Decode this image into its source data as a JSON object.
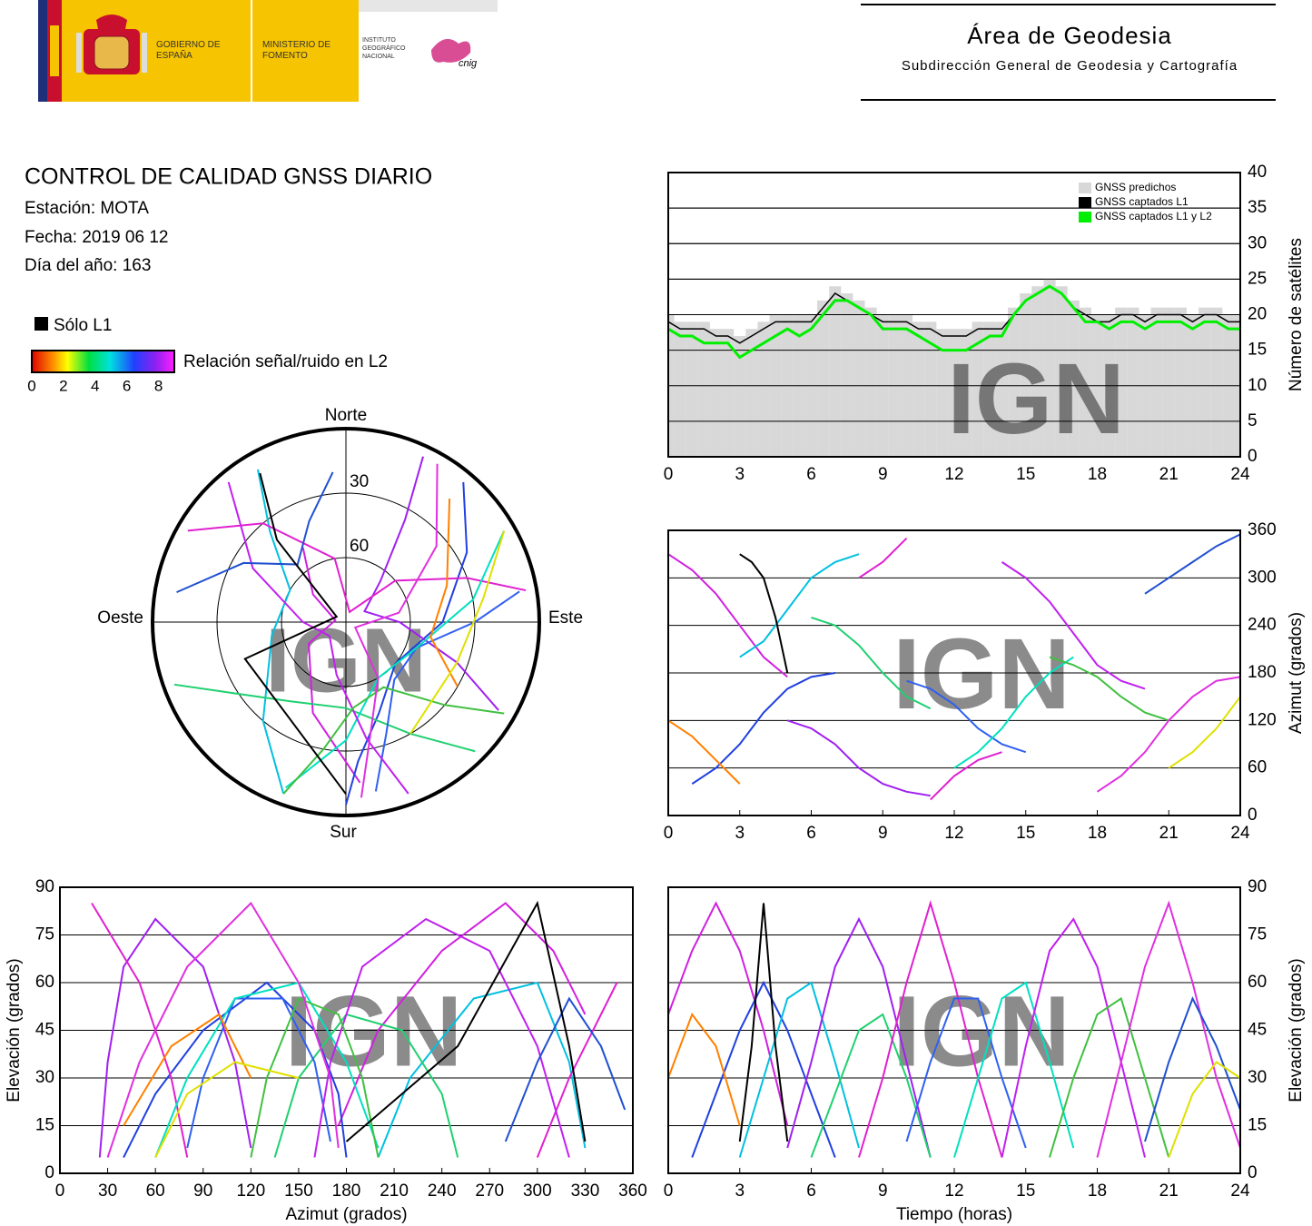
{
  "header": {
    "logo_gov": "GOBIERNO DE ESPAÑA",
    "logo_ministry": "MINISTERIO DE FOMENTO",
    "logo_ign": "INSTITUTO GEOGRÁFICO NACIONAL",
    "logo_cnig": "cnig",
    "title": "Área de Geodesia",
    "subtitle": "Subdirección General de Geodesia y Cartografía"
  },
  "report": {
    "title": "CONTROL DE CALIDAD GNSS DIARIO",
    "station": "Estación: MOTA",
    "date": "Fecha: 2019 06 12",
    "day_of_year": "Día del año: 163",
    "legend_l1": "Sólo L1",
    "colorbar_label": "Relación señal/ruido en L2",
    "colorbar_range": [
      0,
      9
    ],
    "colorbar_ticks": [
      0,
      2,
      4,
      6,
      8
    ]
  },
  "watermark": "IGN",
  "tracks": [
    {
      "color": "#d020e0",
      "x": [
        0,
        1,
        2,
        3,
        4,
        5
      ],
      "azimuth": [
        330,
        310,
        280,
        240,
        200,
        175
      ],
      "elevation": [
        50,
        70,
        85,
        70,
        45,
        15
      ]
    },
    {
      "color": "#2040e0",
      "x": [
        1,
        2,
        3,
        4,
        5,
        6,
        7
      ],
      "azimuth": [
        40,
        60,
        90,
        130,
        160,
        175,
        180
      ],
      "elevation": [
        5,
        25,
        45,
        60,
        45,
        25,
        5
      ]
    },
    {
      "color": "#00c0e0",
      "x": [
        3,
        4,
        5,
        6,
        7,
        8
      ],
      "azimuth": [
        200,
        220,
        260,
        300,
        320,
        330
      ],
      "elevation": [
        5,
        30,
        55,
        60,
        35,
        8
      ]
    },
    {
      "color": "#a020f0",
      "x": [
        5,
        6,
        7,
        8,
        9,
        10,
        11
      ],
      "azimuth": [
        120,
        110,
        90,
        60,
        40,
        30,
        25
      ],
      "elevation": [
        8,
        35,
        65,
        80,
        65,
        35,
        5
      ]
    },
    {
      "color": "#20d070",
      "x": [
        6,
        7,
        8,
        9,
        10,
        11
      ],
      "azimuth": [
        250,
        240,
        215,
        180,
        150,
        135
      ],
      "elevation": [
        5,
        25,
        45,
        50,
        30,
        5
      ]
    },
    {
      "color": "#e020d0",
      "x": [
        8,
        9,
        10,
        11,
        12,
        13,
        14
      ],
      "azimuth": [
        300,
        320,
        350,
        20,
        50,
        70,
        80
      ],
      "elevation": [
        5,
        30,
        60,
        85,
        60,
        30,
        5
      ]
    },
    {
      "color": "#3060f0",
      "x": [
        10,
        11,
        12,
        13,
        14,
        15
      ],
      "azimuth": [
        170,
        160,
        140,
        110,
        90,
        80
      ],
      "elevation": [
        10,
        35,
        55,
        55,
        30,
        8
      ]
    },
    {
      "color": "#00e0c0",
      "x": [
        12,
        13,
        14,
        15,
        16,
        17
      ],
      "azimuth": [
        60,
        80,
        110,
        150,
        180,
        200
      ],
      "elevation": [
        5,
        30,
        55,
        60,
        35,
        8
      ]
    },
    {
      "color": "#c020f0",
      "x": [
        14,
        15,
        16,
        17,
        18,
        19,
        20
      ],
      "azimuth": [
        320,
        300,
        270,
        230,
        190,
        170,
        160
      ],
      "elevation": [
        5,
        40,
        70,
        80,
        65,
        35,
        5
      ]
    },
    {
      "color": "#40c040",
      "x": [
        16,
        17,
        18,
        19,
        20,
        21
      ],
      "azimuth": [
        200,
        190,
        175,
        150,
        130,
        120
      ],
      "elevation": [
        5,
        30,
        50,
        55,
        30,
        5
      ]
    },
    {
      "color": "#e030e0",
      "x": [
        18,
        19,
        20,
        21,
        22,
        23,
        24
      ],
      "azimuth": [
        30,
        50,
        80,
        120,
        150,
        170,
        175
      ],
      "elevation": [
        5,
        35,
        65,
        85,
        60,
        30,
        8
      ]
    },
    {
      "color": "#2050d0",
      "x": [
        20,
        21,
        22,
        23,
        24
      ],
      "azimuth": [
        280,
        300,
        320,
        340,
        355
      ],
      "elevation": [
        10,
        35,
        55,
        40,
        20
      ]
    },
    {
      "color": "#000000",
      "x": [
        3,
        3.5,
        4,
        4.5,
        5
      ],
      "azimuth": [
        330,
        320,
        300,
        250,
        180
      ],
      "elevation": [
        10,
        40,
        85,
        40,
        10
      ]
    },
    {
      "color": "#ff8000",
      "x": [
        0,
        1,
        2,
        3
      ],
      "azimuth": [
        120,
        100,
        70,
        40
      ],
      "elevation": [
        30,
        50,
        40,
        15
      ]
    },
    {
      "color": "#e0e000",
      "x": [
        21,
        22,
        23,
        24
      ],
      "azimuth": [
        60,
        80,
        110,
        150
      ],
      "elevation": [
        5,
        25,
        35,
        30
      ]
    }
  ],
  "chart_data": [
    {
      "type": "step",
      "ylabel": "Número de satélites",
      "xlim": [
        0,
        24
      ],
      "xticks": [
        0,
        3,
        6,
        9,
        12,
        15,
        18,
        21,
        24
      ],
      "ylim": [
        0,
        40
      ],
      "yticks": [
        0,
        5,
        10,
        15,
        20,
        25,
        30,
        35,
        40
      ],
      "grid": true,
      "legend": "top-right",
      "x": [
        0,
        0.5,
        1,
        1.5,
        2,
        2.5,
        3,
        3.5,
        4,
        4.5,
        5,
        5.5,
        6,
        6.5,
        7,
        7.5,
        8,
        8.5,
        9,
        9.5,
        10,
        10.5,
        11,
        11.5,
        12,
        12.5,
        13,
        13.5,
        14,
        14.5,
        15,
        15.5,
        16,
        16.5,
        17,
        17.5,
        18,
        18.5,
        19,
        19.5,
        20,
        20.5,
        21,
        21.5,
        22,
        22.5,
        23,
        23.5,
        24
      ],
      "series": [
        {
          "name": "GNSS predichos",
          "color": "#d8d8d8",
          "values": [
            20,
            19,
            19,
            19,
            18,
            18,
            17,
            18,
            19,
            20,
            20,
            20,
            20,
            22,
            24,
            23,
            22,
            21,
            20,
            20,
            20,
            19,
            19,
            18,
            18,
            18,
            19,
            19,
            19,
            21,
            23,
            24,
            25,
            24,
            22,
            21,
            20,
            20,
            21,
            21,
            20,
            21,
            21,
            21,
            20,
            21,
            21,
            20,
            20
          ]
        },
        {
          "name": "GNSS captados L1",
          "color": "#000000",
          "values": [
            19,
            18,
            18,
            18,
            17,
            17,
            16,
            17,
            18,
            19,
            19,
            19,
            19,
            21,
            23,
            22,
            21,
            20,
            19,
            19,
            19,
            18,
            18,
            17,
            17,
            17,
            18,
            18,
            18,
            20,
            22,
            23,
            24,
            23,
            21,
            20,
            19,
            19,
            20,
            20,
            19,
            20,
            20,
            20,
            19,
            20,
            20,
            19,
            19
          ]
        },
        {
          "name": "GNSS captados L1 y L2",
          "color": "#00ee00",
          "values": [
            18,
            17,
            17,
            16,
            16,
            16,
            14,
            15,
            16,
            17,
            18,
            17,
            18,
            20,
            22,
            22,
            21,
            20,
            18,
            18,
            18,
            17,
            16,
            15,
            15,
            15,
            16,
            17,
            17,
            20,
            22,
            23,
            24,
            23,
            21,
            19,
            19,
            18,
            19,
            19,
            18,
            19,
            19,
            19,
            18,
            19,
            19,
            18,
            18
          ]
        }
      ]
    },
    {
      "type": "track",
      "ylabel": "Azimut (grados)",
      "xlim": [
        0,
        24
      ],
      "xticks": [
        0,
        3,
        6,
        9,
        12,
        15,
        18,
        21,
        24
      ],
      "ylim": [
        0,
        360
      ],
      "yticks": [
        0,
        60,
        120,
        180,
        240,
        300,
        360
      ],
      "grid": true
    },
    {
      "type": "track",
      "xlabel": "Azimut (grados)",
      "ylabel": "Elevación (grados)",
      "xlim": [
        0,
        360
      ],
      "xticks": [
        0,
        30,
        60,
        90,
        120,
        150,
        180,
        210,
        240,
        270,
        300,
        330,
        360
      ],
      "ylim": [
        0,
        90
      ],
      "yticks": [
        0,
        15,
        30,
        45,
        60,
        75,
        90
      ],
      "grid": true
    },
    {
      "type": "track",
      "xlabel": "Tiempo (horas)",
      "ylabel": "Elevación (grados)",
      "xlim": [
        0,
        24
      ],
      "xticks": [
        0,
        3,
        6,
        9,
        12,
        15,
        18,
        21,
        24
      ],
      "ylim": [
        0,
        90
      ],
      "yticks": [
        0,
        15,
        30,
        45,
        60,
        75,
        90
      ],
      "grid": true
    },
    {
      "type": "polar",
      "north": "Norte",
      "south": "Sur",
      "east": "Este",
      "west": "Oeste",
      "rlim": [
        90,
        0
      ],
      "rticks": [
        30,
        60
      ]
    }
  ]
}
